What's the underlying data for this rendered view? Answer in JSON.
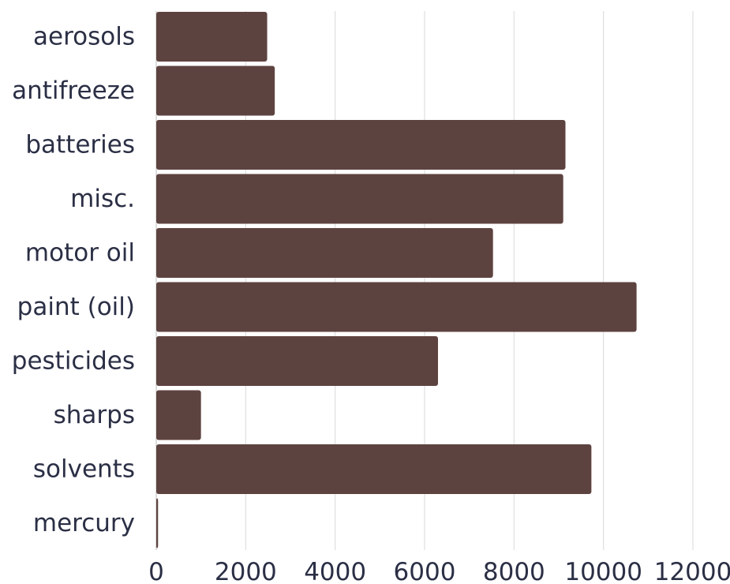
{
  "chart_data": {
    "type": "bar",
    "orientation": "horizontal",
    "categories": [
      "aerosols",
      "antifreeze",
      "batteries",
      "misc.",
      "motor oil",
      "paint (oil)",
      "pesticides",
      "sharps",
      "solvents",
      "mercury"
    ],
    "values": [
      2480,
      2650,
      9150,
      9100,
      7530,
      10740,
      6300,
      1000,
      9730,
      40
    ],
    "xlim": [
      0,
      12000
    ],
    "xticks": [
      "0",
      "2000",
      "4000",
      "6000",
      "8000",
      "10000",
      "12000"
    ],
    "grid": "vertical",
    "bar_color": "#5d4340",
    "title": "",
    "xlabel": "",
    "ylabel": ""
  }
}
